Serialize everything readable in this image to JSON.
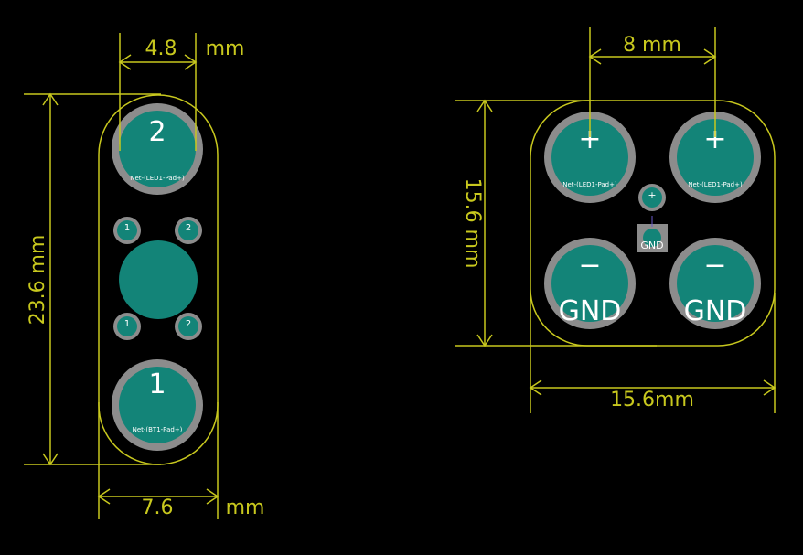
{
  "colors": {
    "background": "#000000",
    "dimension": "#c8c81e",
    "outline": "#c8c81e",
    "pad_ring": "#8c8c8c",
    "pad_fill": "#138478",
    "text": "#ffffff"
  },
  "left_board": {
    "dim_pad_spacing_value": "4.8",
    "dim_pad_spacing_unit": "mm",
    "dim_height": "23.6 mm",
    "dim_width_value": "7.6",
    "dim_width_unit": "mm",
    "top_pad": {
      "number": "2",
      "net": "Net-(LED1-Pad+)"
    },
    "bottom_pad": {
      "number": "1",
      "net": "Net-(BT1-Pad+)"
    },
    "small_pads": [
      "1",
      "2",
      "1",
      "2"
    ]
  },
  "right_board": {
    "dim_pad_spacing": "8 mm",
    "dim_height": "15.6 mm",
    "dim_width": "15.6mm",
    "pads": [
      {
        "symbol": "+",
        "net": "Net-(LED1-Pad+)"
      },
      {
        "symbol": "+",
        "net": "Net-(LED1-Pad+)"
      },
      {
        "symbol": "−",
        "label": "GND"
      },
      {
        "symbol": "−",
        "label": "GND"
      }
    ],
    "center_pad": {
      "symbol": "+",
      "label": "GND"
    }
  }
}
